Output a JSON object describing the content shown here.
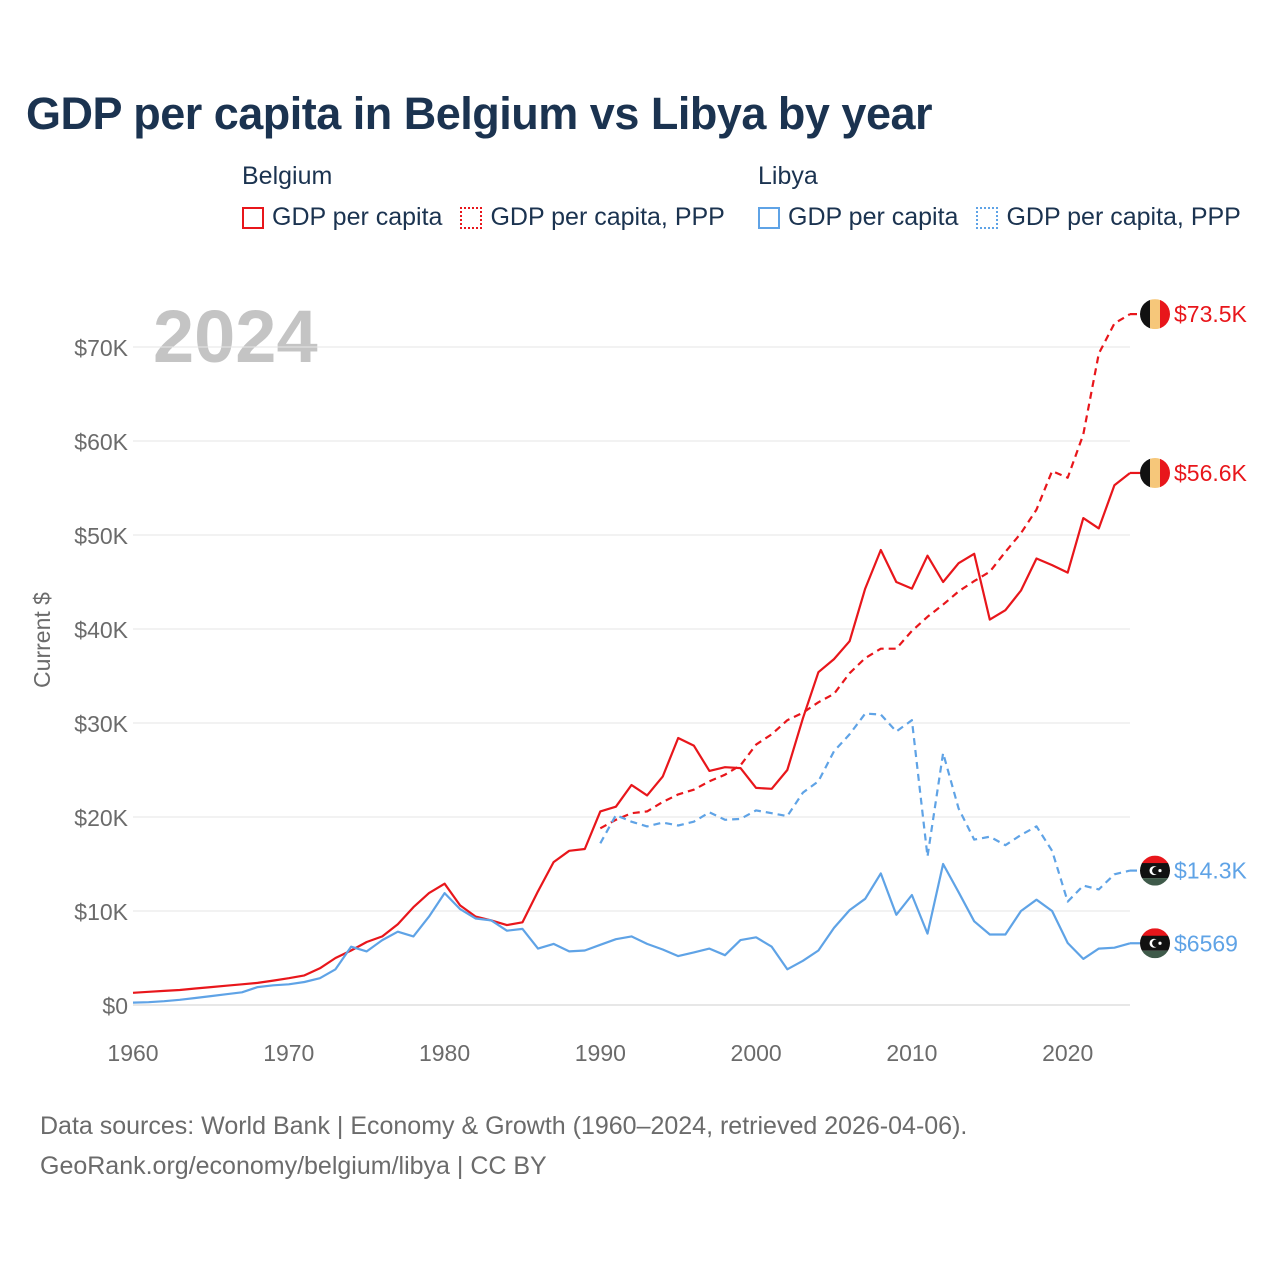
{
  "title": "GDP per capita in Belgium vs Libya by year",
  "legend": {
    "groups": [
      {
        "name": "Belgium",
        "items": [
          {
            "label": "GDP per capita",
            "color": "#e8161b",
            "style": "solid"
          },
          {
            "label": "GDP per capita, PPP",
            "color": "#e8161b",
            "style": "dotted"
          }
        ]
      },
      {
        "name": "Libya",
        "items": [
          {
            "label": "GDP per capita",
            "color": "#5fa3e6",
            "style": "solid"
          },
          {
            "label": "GDP per capita, PPP",
            "color": "#5fa3e6",
            "style": "dotted"
          }
        ]
      }
    ]
  },
  "year_watermark": "2024",
  "footer": {
    "line1": "Data sources: World Bank | Economy & Growth (1960–2024, retrieved 2026-04-06).",
    "line2": "GeoRank.org/economy/belgium/libya | CC BY"
  },
  "chart_data": {
    "type": "line",
    "title": "GDP per capita in Belgium vs Libya by year",
    "xlabel": "",
    "ylabel": "Current $",
    "xlim": [
      1960,
      2024
    ],
    "ylim": [
      0,
      75000
    ],
    "x_ticks": [
      1960,
      1970,
      1980,
      1990,
      2000,
      2010,
      2020
    ],
    "x_tick_labels": [
      "1960",
      "1970",
      "1980",
      "1990",
      "2000",
      "2010",
      "2020"
    ],
    "y_ticks": [
      0,
      10000,
      20000,
      30000,
      40000,
      50000,
      60000,
      70000
    ],
    "y_tick_labels": [
      "$0",
      "$10K",
      "$20K",
      "$30K",
      "$40K",
      "$50K",
      "$60K",
      "$70K"
    ],
    "grid": true,
    "series": [
      {
        "name": "Belgium GDP per capita",
        "color": "#e8161b",
        "dash": false,
        "end_label": "$56.6K",
        "flag": "belgium",
        "x": [
          1960,
          1961,
          1962,
          1963,
          1964,
          1965,
          1966,
          1967,
          1968,
          1969,
          1970,
          1971,
          1972,
          1973,
          1974,
          1975,
          1976,
          1977,
          1978,
          1979,
          1980,
          1981,
          1982,
          1983,
          1984,
          1985,
          1986,
          1987,
          1988,
          1989,
          1990,
          1991,
          1992,
          1993,
          1994,
          1995,
          1996,
          1997,
          1998,
          1999,
          2000,
          2001,
          2002,
          2003,
          2004,
          2005,
          2006,
          2007,
          2008,
          2009,
          2010,
          2011,
          2012,
          2013,
          2014,
          2015,
          2016,
          2017,
          2018,
          2019,
          2020,
          2021,
          2022,
          2023,
          2024
        ],
        "values": [
          1300,
          1400,
          1500,
          1600,
          1750,
          1900,
          2050,
          2200,
          2350,
          2600,
          2850,
          3150,
          3900,
          5000,
          5800,
          6700,
          7300,
          8600,
          10400,
          11900,
          12900,
          10600,
          9400,
          9000,
          8500,
          8800,
          12100,
          15200,
          16400,
          16600,
          20600,
          21100,
          23400,
          22300,
          24300,
          28400,
          27600,
          24900,
          25300,
          25200,
          23100,
          23000,
          25000,
          30500,
          35400,
          36800,
          38700,
          44300,
          48400,
          45000,
          44300,
          47800,
          45000,
          47000,
          48000,
          41000,
          42000,
          44100,
          47500,
          46800,
          46000,
          51800,
          50700,
          55300,
          56600
        ]
      },
      {
        "name": "Belgium GDP per capita, PPP",
        "color": "#e8161b",
        "dash": true,
        "end_label": "$73.5K",
        "flag": "belgium",
        "x": [
          1990,
          1991,
          1992,
          1993,
          1994,
          1995,
          1996,
          1997,
          1998,
          1999,
          2000,
          2001,
          2002,
          2003,
          2004,
          2005,
          2006,
          2007,
          2008,
          2009,
          2010,
          2011,
          2012,
          2013,
          2014,
          2015,
          2016,
          2017,
          2018,
          2019,
          2020,
          2021,
          2022,
          2023,
          2024
        ],
        "values": [
          18800,
          19700,
          20400,
          20600,
          21600,
          22400,
          22900,
          23800,
          24500,
          25500,
          27700,
          28800,
          30300,
          31100,
          32200,
          33100,
          35300,
          36900,
          37900,
          37900,
          39800,
          41300,
          42600,
          44000,
          45100,
          46100,
          48200,
          50200,
          52700,
          56800,
          56100,
          60700,
          69300,
          72500,
          73500
        ]
      },
      {
        "name": "Libya GDP per capita",
        "color": "#5fa3e6",
        "dash": false,
        "end_label": "$6569",
        "flag": "libya",
        "x": [
          1960,
          1961,
          1962,
          1963,
          1964,
          1965,
          1966,
          1967,
          1968,
          1969,
          1970,
          1971,
          1972,
          1973,
          1974,
          1975,
          1976,
          1977,
          1978,
          1979,
          1980,
          1981,
          1982,
          1983,
          1984,
          1985,
          1986,
          1987,
          1988,
          1989,
          1990,
          1991,
          1992,
          1993,
          1994,
          1995,
          1996,
          1997,
          1998,
          1999,
          2000,
          2001,
          2002,
          2003,
          2004,
          2005,
          2006,
          2007,
          2008,
          2009,
          2010,
          2011,
          2012,
          2013,
          2014,
          2015,
          2016,
          2017,
          2018,
          2019,
          2020,
          2021,
          2022,
          2023,
          2024
        ],
        "values": [
          250,
          300,
          400,
          550,
          750,
          950,
          1150,
          1350,
          1900,
          2100,
          2200,
          2450,
          2850,
          3800,
          6200,
          5700,
          6900,
          7800,
          7300,
          9400,
          11900,
          10200,
          9200,
          9000,
          7900,
          8100,
          6000,
          6500,
          5700,
          5800,
          6400,
          7000,
          7300,
          6500,
          5900,
          5200,
          5600,
          6000,
          5300,
          6900,
          7200,
          6200,
          3800,
          4700,
          5800,
          8200,
          10100,
          11300,
          14000,
          9600,
          11700,
          7600,
          15000,
          12000,
          8900,
          7500,
          7500,
          10000,
          11200,
          10000,
          6600,
          4900,
          6000,
          6100,
          6569
        ]
      },
      {
        "name": "Libya GDP per capita, PPP",
        "color": "#5fa3e6",
        "dash": true,
        "end_label": "$14.3K",
        "flag": "libya",
        "x": [
          1990,
          1991,
          1992,
          1993,
          1994,
          1995,
          1996,
          1997,
          1998,
          1999,
          2000,
          2001,
          2002,
          2003,
          2004,
          2005,
          2006,
          2007,
          2008,
          2009,
          2010,
          2011,
          2012,
          2013,
          2014,
          2015,
          2016,
          2017,
          2018,
          2019,
          2020,
          2021,
          2022,
          2023,
          2024
        ],
        "values": [
          17200,
          20200,
          19500,
          19000,
          19400,
          19100,
          19500,
          20500,
          19700,
          19800,
          20700,
          20400,
          20100,
          22600,
          23800,
          27000,
          28800,
          31000,
          30900,
          29100,
          30300,
          15800,
          26800,
          20900,
          17600,
          17900,
          17000,
          18100,
          19000,
          16400,
          11000,
          12700,
          12300,
          13900,
          14300
        ]
      }
    ]
  }
}
